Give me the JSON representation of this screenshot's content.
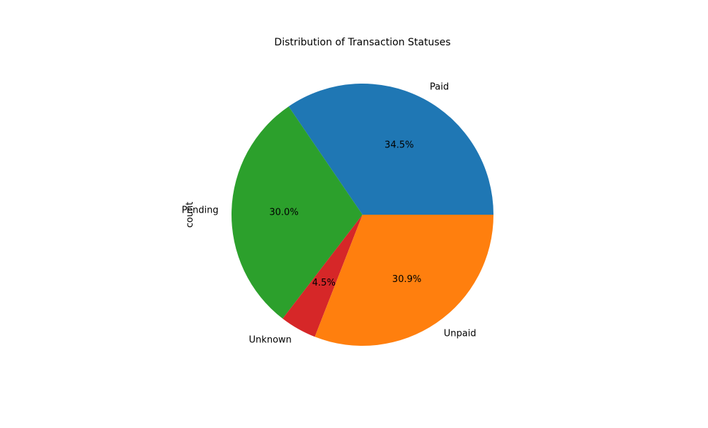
{
  "chart_data": {
    "type": "pie",
    "title": "Distribution of Transaction Statuses",
    "ylabel": "count",
    "slices": [
      {
        "label": "Paid",
        "pct_label": "34.5%",
        "value": 34.5,
        "color": "#1f77b4"
      },
      {
        "label": "Pending",
        "pct_label": "30.0%",
        "value": 30.0,
        "color": "#2ca02c"
      },
      {
        "label": "Unknown",
        "pct_label": "4.5%",
        "value": 4.5,
        "color": "#d62728"
      },
      {
        "label": "Unpaid",
        "pct_label": "30.9%",
        "value": 30.9,
        "color": "#ff7f0e"
      }
    ],
    "start_angle_deg": 0,
    "direction": "counterclockwise"
  }
}
